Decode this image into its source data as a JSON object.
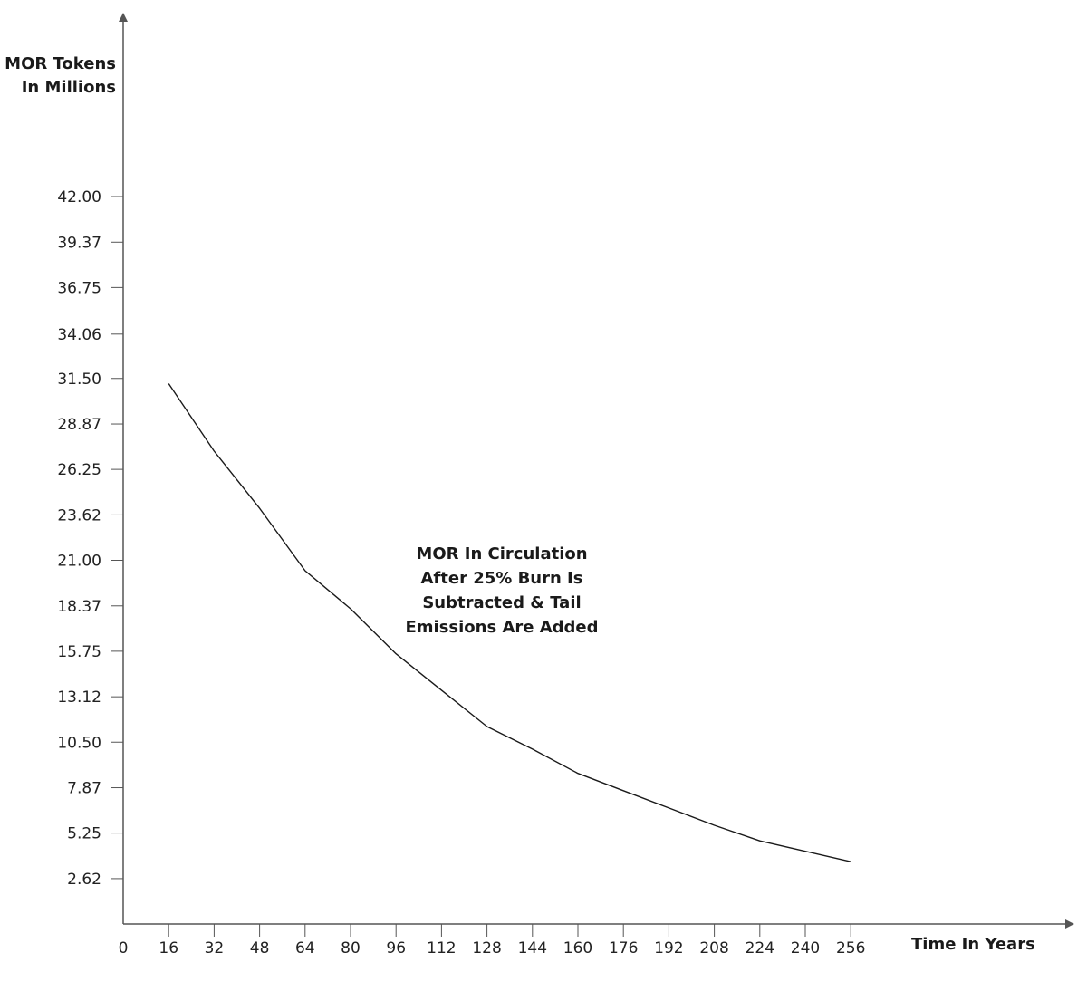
{
  "chart_data": {
    "type": "line",
    "title": "",
    "ylabel_lines": [
      "MOR Tokens",
      "In Millions"
    ],
    "xlabel": "Time In Years",
    "annotation_lines": [
      "MOR In Circulation",
      "After 25% Burn Is",
      "Subtracted & Tail",
      "Emissions Are Added"
    ],
    "x_ticks": [
      "0",
      "16",
      "32",
      "48",
      "64",
      "80",
      "96",
      "112",
      "128",
      "144",
      "160",
      "176",
      "192",
      "208",
      "224",
      "240",
      "256"
    ],
    "y_ticks": [
      "2.62",
      "5.25",
      "7.87",
      "10.50",
      "13.12",
      "15.75",
      "18.37",
      "21.00",
      "23.62",
      "26.25",
      "28.87",
      "31.50",
      "34.06",
      "36.75",
      "39.37",
      "42.00"
    ],
    "xlim": [
      0,
      320
    ],
    "ylim": [
      0,
      50
    ],
    "grid": false,
    "series": [
      {
        "x": [
          16,
          32,
          48,
          64,
          80,
          96,
          112,
          128,
          144,
          160,
          176,
          192,
          208,
          224,
          240,
          256
        ],
        "y": [
          31.2,
          27.3,
          24.0,
          20.4,
          18.2,
          15.6,
          13.5,
          11.4,
          10.1,
          8.7,
          7.7,
          6.7,
          5.7,
          4.8,
          4.2,
          3.6
        ]
      }
    ],
    "line_color": "#1a1a1a",
    "axis_color": "#555555"
  }
}
